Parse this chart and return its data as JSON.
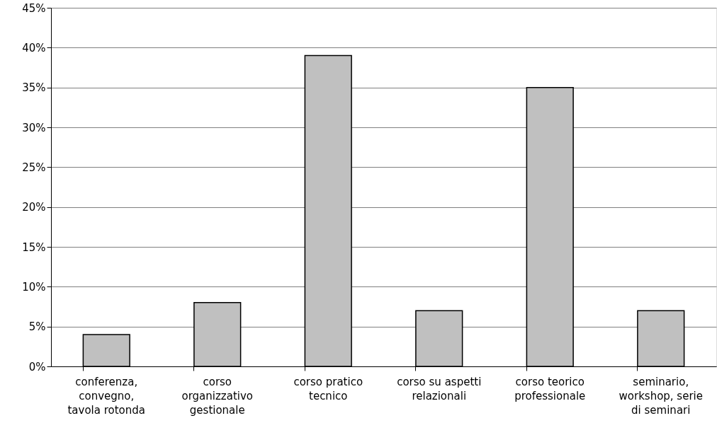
{
  "chart_data": {
    "type": "bar",
    "categories": [
      "conferenza, convegno, tavola rotonda",
      "corso organizzativo gestionale",
      "corso pratico tecnico",
      "corso su aspetti relazionali",
      "corso teorico professionale",
      "seminario, workshop, serie di seminari"
    ],
    "values": [
      4,
      8,
      39,
      7,
      35,
      7
    ],
    "color": "#c0c0c0",
    "ylim": [
      0,
      45
    ],
    "yticks": [
      {
        "value": 0,
        "label": "0%"
      },
      {
        "value": 5,
        "label": "5%"
      },
      {
        "value": 10,
        "label": "10%"
      },
      {
        "value": 15,
        "label": "15%"
      },
      {
        "value": 20,
        "label": "20%"
      },
      {
        "value": 25,
        "label": "25%"
      },
      {
        "value": 30,
        "label": "30%"
      },
      {
        "value": 35,
        "label": "35%"
      },
      {
        "value": 40,
        "label": "40%"
      },
      {
        "value": 45,
        "label": "45%"
      }
    ],
    "grid": "y"
  }
}
